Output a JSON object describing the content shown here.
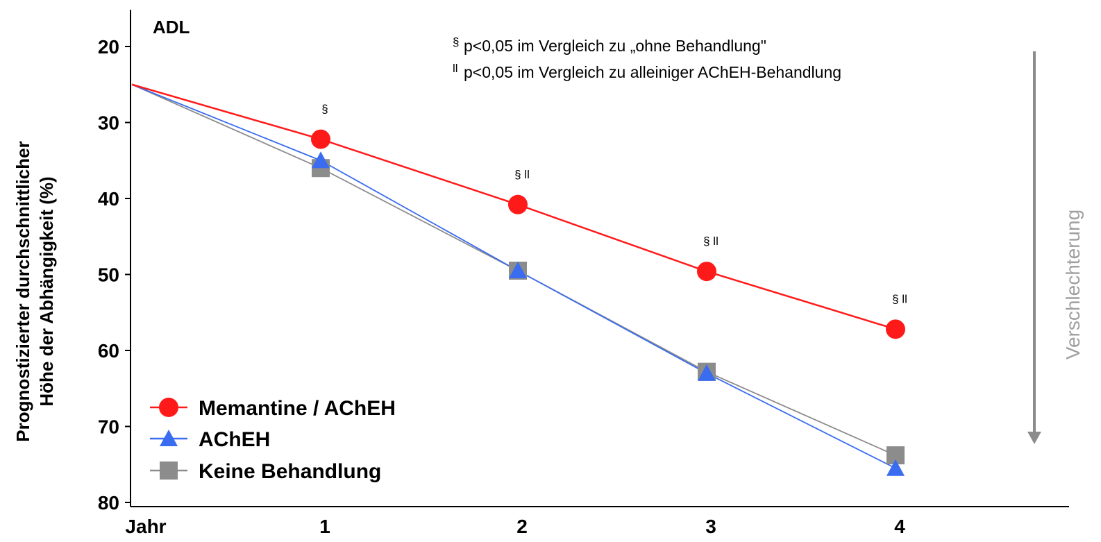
{
  "chart_data": {
    "type": "line",
    "title": "ADL",
    "xlabel": "",
    "ylabel_lines": [
      "Prognostizierter durchschnittlicher",
      "Höhe der Abhängigkeit (%)"
    ],
    "x_axis_first_label": "Jahr",
    "x": [
      0,
      1,
      2,
      3,
      4
    ],
    "x_tick_labels": [
      "1",
      "2",
      "3",
      "4"
    ],
    "y_ticks": [
      20,
      30,
      40,
      50,
      60,
      70,
      80
    ],
    "ylim": [
      15,
      80
    ],
    "y_inverted": true,
    "grid": false,
    "legend_position": "bottom-left",
    "series": [
      {
        "name": "Memantine / AChEH",
        "color": "#ff1a1a",
        "marker": "circle",
        "values": [
          25,
          32.2,
          40.8,
          49.6,
          57.2
        ]
      },
      {
        "name": "AChEH",
        "color": "#3a6cf0",
        "marker": "triangle",
        "values": [
          25,
          35.0,
          49.5,
          63.0,
          75.5
        ]
      },
      {
        "name": "Keine Behandlung",
        "color": "#8c8c8c",
        "marker": "square",
        "values": [
          25,
          36.0,
          49.5,
          62.8,
          73.8
        ]
      }
    ],
    "significance_markers": [
      {
        "x": 1,
        "text": "§"
      },
      {
        "x": 2,
        "text": "§ ll"
      },
      {
        "x": 3,
        "text": "§ ll"
      },
      {
        "x": 4,
        "text": "§ ll"
      }
    ],
    "annotations": [
      {
        "symbol": "§",
        "text": "p<0,05 im Vergleich zu  „ohne Behandlung\""
      },
      {
        "symbol": "ll",
        "text": "p<0,05 im Vergleich zu  alleiniger AChEH-Behandlung"
      }
    ],
    "trend_label": "Verschlechterung"
  }
}
